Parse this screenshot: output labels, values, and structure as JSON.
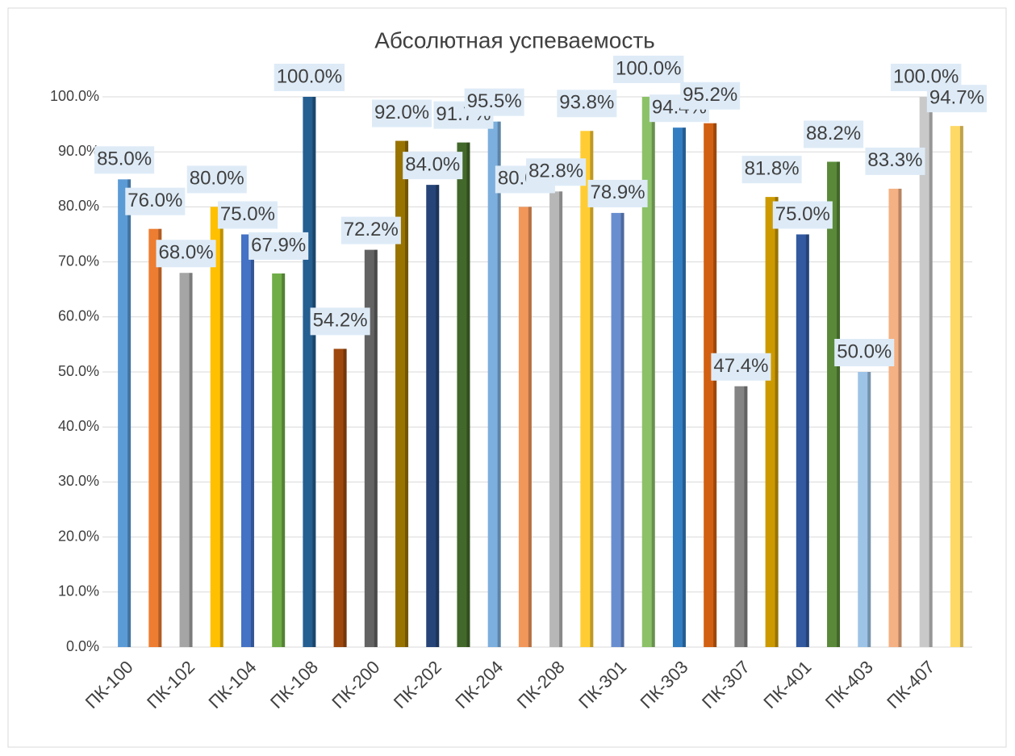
{
  "chart_data": {
    "type": "bar",
    "title": "Абсолютная успеваемость",
    "categories": [
      "ПК-100",
      null,
      "ПК-102",
      null,
      "ПК-104",
      null,
      "ПК-108",
      null,
      "ПК-200",
      null,
      "ПК-202",
      null,
      "ПК-204",
      null,
      "ПК-208",
      null,
      "ПК-301",
      null,
      "ПК-303",
      null,
      "ПК-307",
      null,
      "ПК-401",
      null,
      "ПК-403",
      null,
      "ПК-407",
      null
    ],
    "values": [
      85.0,
      76.0,
      68.0,
      80.0,
      75.0,
      67.9,
      100.0,
      54.2,
      72.2,
      92.0,
      84.0,
      91.7,
      95.5,
      80.0,
      82.8,
      93.8,
      78.9,
      100.0,
      94.4,
      95.2,
      47.4,
      81.8,
      75.0,
      88.2,
      50.0,
      83.3,
      100.0,
      94.7
    ],
    "value_labels": [
      "85.0%",
      "76.0%",
      "68.0%",
      "80.0%",
      "75.0%",
      "67.9%",
      "100.0%",
      "54.2%",
      "72.2%",
      "92.0%",
      "84.0%",
      "91.7%",
      "95.5%",
      "80.0%",
      "82.8%",
      "93.8%",
      "78.9%",
      "100.0%",
      "94.4%",
      "95.2%",
      "47.4%",
      "81.8%",
      "75.0%",
      "88.2%",
      "50.0%",
      "83.3%",
      "100.0%",
      "94.7%"
    ],
    "colors": [
      "#5b9bd5",
      "#ed7d31",
      "#a5a5a5",
      "#ffc000",
      "#4472c4",
      "#70ad47",
      "#255e91",
      "#9e480e",
      "#636363",
      "#997300",
      "#264478",
      "#43682b",
      "#7cafdd",
      "#f1975a",
      "#b7b7b7",
      "#ffcd33",
      "#698ed0",
      "#8cc168",
      "#327dc2",
      "#d26012",
      "#848484",
      "#cc9a00",
      "#335aa1",
      "#5a8a39",
      "#9dc3e6",
      "#f4b183",
      "#c9c9c9",
      "#ffd966"
    ],
    "ylim": [
      0,
      100
    ],
    "yticks": [
      {
        "value": 0,
        "label": "0.0%"
      },
      {
        "value": 10,
        "label": "10.0%"
      },
      {
        "value": 20,
        "label": "20.0%"
      },
      {
        "value": 30,
        "label": "30.0%"
      },
      {
        "value": 40,
        "label": "40.0%"
      },
      {
        "value": 50,
        "label": "50.0%"
      },
      {
        "value": 60,
        "label": "60.0%"
      },
      {
        "value": 70,
        "label": "70.0%"
      },
      {
        "value": 80,
        "label": "80.0%"
      },
      {
        "value": 90,
        "label": "90.0%"
      },
      {
        "value": 100,
        "label": "100.0%"
      }
    ],
    "grid": true
  }
}
